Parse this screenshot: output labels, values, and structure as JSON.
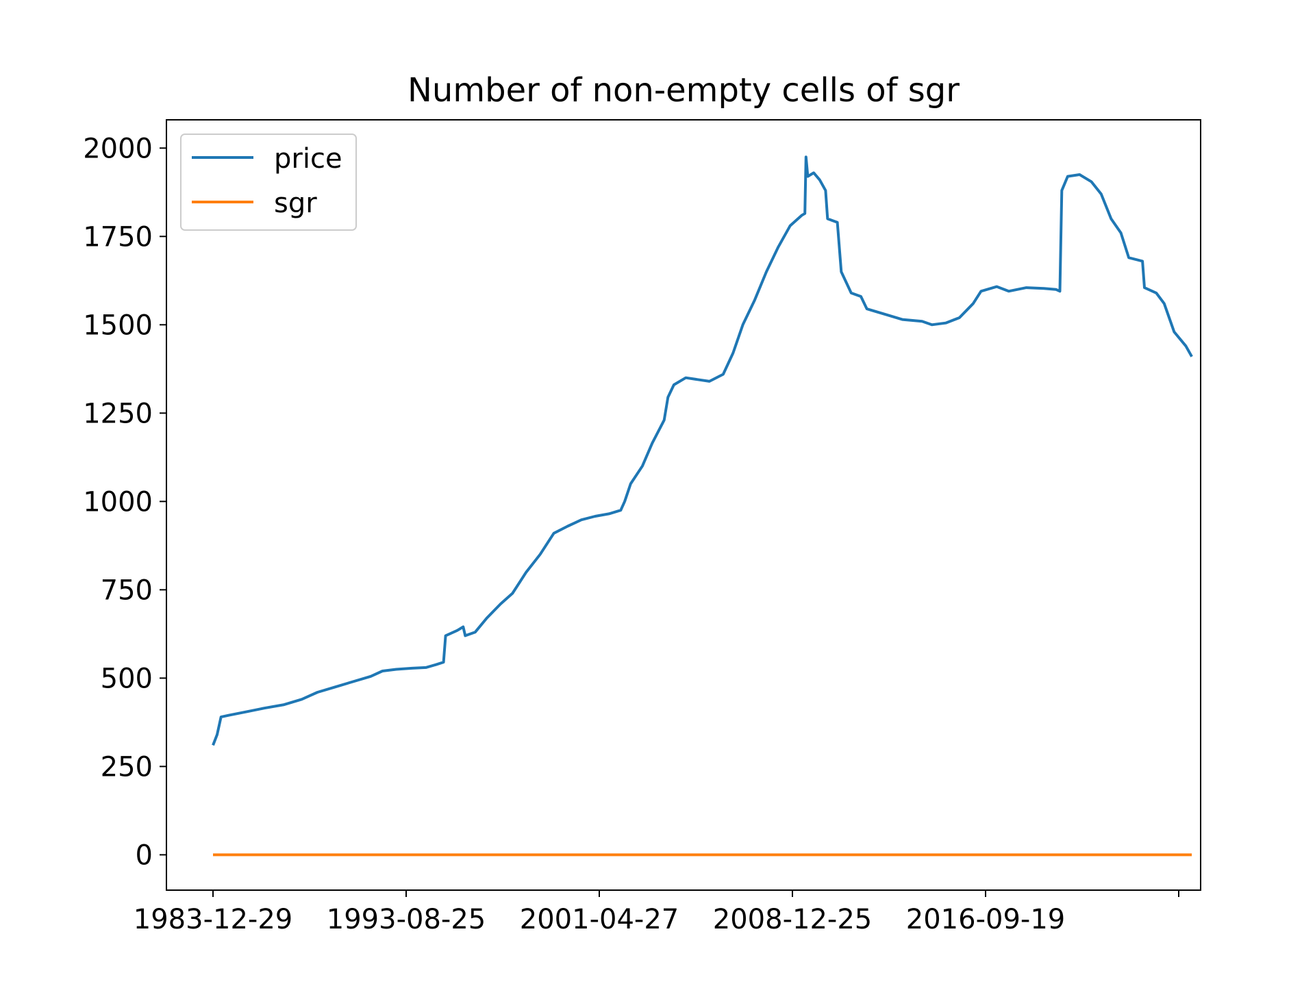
{
  "chart_data": {
    "type": "line",
    "title": "Number of non-empty cells of sgr",
    "xlabel": "",
    "ylabel": "",
    "x_tick_labels": [
      "1983-12-29",
      "1993-08-25",
      "2001-04-27",
      "2008-12-25",
      "2016-09-19",
      ""
    ],
    "y_ticks": [
      0,
      250,
      500,
      750,
      1000,
      1250,
      1500,
      1750,
      2000
    ],
    "ylim": [
      -100,
      2080
    ],
    "grid": false,
    "legend_position": "upper-left",
    "series": [
      {
        "name": "price",
        "color": "#1f77b4",
        "points": [
          [
            "1983-12-29",
            310
          ],
          [
            "1984-03-01",
            340
          ],
          [
            "1984-05-01",
            390
          ],
          [
            "1984-09-01",
            395
          ],
          [
            "1985-06-01",
            405
          ],
          [
            "1986-03-01",
            415
          ],
          [
            "1987-01-01",
            425
          ],
          [
            "1987-10-01",
            440
          ],
          [
            "1988-06-01",
            460
          ],
          [
            "1989-03-01",
            475
          ],
          [
            "1989-12-01",
            490
          ],
          [
            "1990-09-01",
            505
          ],
          [
            "1991-03-01",
            520
          ],
          [
            "1991-10-01",
            525
          ],
          [
            "1992-06-01",
            528
          ],
          [
            "1993-01-01",
            530
          ],
          [
            "1993-06-01",
            538
          ],
          [
            "1993-10-01",
            545
          ],
          [
            "1993-11-01",
            620
          ],
          [
            "1994-05-01",
            635
          ],
          [
            "1994-08-01",
            645
          ],
          [
            "1994-09-01",
            620
          ],
          [
            "1995-02-01",
            630
          ],
          [
            "1995-08-01",
            670
          ],
          [
            "1996-03-01",
            710
          ],
          [
            "1996-09-01",
            740
          ],
          [
            "1997-04-01",
            800
          ],
          [
            "1997-11-01",
            850
          ],
          [
            "1998-06-01",
            910
          ],
          [
            "1999-01-01",
            930
          ],
          [
            "1999-08-01",
            948
          ],
          [
            "2000-03-01",
            958
          ],
          [
            "2000-10-01",
            965
          ],
          [
            "2001-04-01",
            975
          ],
          [
            "2001-06-01",
            1000
          ],
          [
            "2001-09-01",
            1050
          ],
          [
            "2002-03-01",
            1100
          ],
          [
            "2002-08-01",
            1165
          ],
          [
            "2003-02-01",
            1230
          ],
          [
            "2003-04-01",
            1295
          ],
          [
            "2003-07-01",
            1330
          ],
          [
            "2004-01-01",
            1350
          ],
          [
            "2004-07-01",
            1345
          ],
          [
            "2005-01-01",
            1340
          ],
          [
            "2005-08-01",
            1360
          ],
          [
            "2006-01-01",
            1420
          ],
          [
            "2006-06-01",
            1500
          ],
          [
            "2006-12-01",
            1570
          ],
          [
            "2007-06-01",
            1650
          ],
          [
            "2007-12-01",
            1720
          ],
          [
            "2008-06-01",
            1780
          ],
          [
            "2008-12-01",
            1810
          ],
          [
            "2009-01-15",
            1815
          ],
          [
            "2009-02-01",
            1975
          ],
          [
            "2009-03-01",
            1920
          ],
          [
            "2009-06-01",
            1930
          ],
          [
            "2009-09-01",
            1910
          ],
          [
            "2009-12-01",
            1880
          ],
          [
            "2010-01-01",
            1800
          ],
          [
            "2010-06-01",
            1790
          ],
          [
            "2010-08-01",
            1650
          ],
          [
            "2011-01-01",
            1590
          ],
          [
            "2011-06-01",
            1580
          ],
          [
            "2011-09-01",
            1545
          ],
          [
            "2012-06-01",
            1530
          ],
          [
            "2013-03-01",
            1515
          ],
          [
            "2014-01-01",
            1510
          ],
          [
            "2014-06-01",
            1500
          ],
          [
            "2015-01-01",
            1505
          ],
          [
            "2015-08-01",
            1520
          ],
          [
            "2016-03-01",
            1560
          ],
          [
            "2016-07-01",
            1595
          ],
          [
            "2017-03-01",
            1608
          ],
          [
            "2017-09-01",
            1595
          ],
          [
            "2018-06-01",
            1605
          ],
          [
            "2019-03-01",
            1603
          ],
          [
            "2019-09-01",
            1600
          ],
          [
            "2019-11-01",
            1595
          ],
          [
            "2019-12-01",
            1880
          ],
          [
            "2020-03-01",
            1920
          ],
          [
            "2020-09-01",
            1925
          ],
          [
            "2021-03-01",
            1905
          ],
          [
            "2021-08-01",
            1870
          ],
          [
            "2022-01-01",
            1800
          ],
          [
            "2022-06-01",
            1760
          ],
          [
            "2022-10-01",
            1690
          ],
          [
            "2023-05-01",
            1680
          ],
          [
            "2023-06-01",
            1605
          ],
          [
            "2023-12-01",
            1590
          ],
          [
            "2024-04-01",
            1560
          ],
          [
            "2024-09-01",
            1480
          ],
          [
            "2025-03-01",
            1440
          ],
          [
            "2025-06-01",
            1410
          ]
        ]
      },
      {
        "name": "sgr",
        "color": "#ff7f0e",
        "points": [
          [
            "1983-12-29",
            0
          ],
          [
            "2025-06-01",
            0
          ]
        ]
      }
    ]
  }
}
